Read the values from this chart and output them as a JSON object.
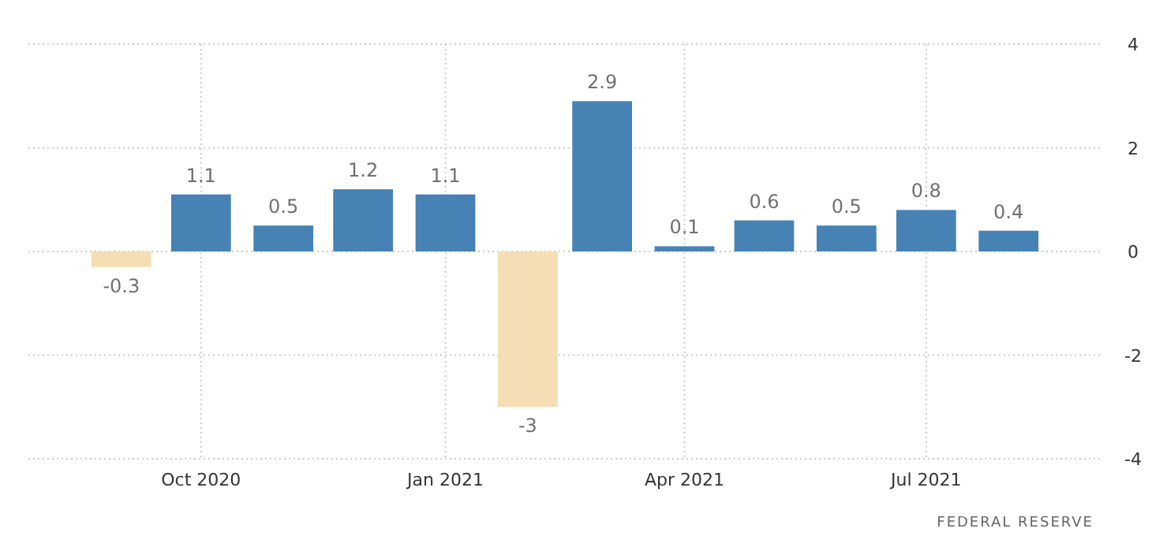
{
  "chart_data": {
    "type": "bar",
    "x": [
      "2020-09",
      "2020-10",
      "2020-11",
      "2020-12",
      "2021-01",
      "2021-02",
      "2021-03",
      "2021-04",
      "2021-05",
      "2021-06",
      "2021-07",
      "2021-08"
    ],
    "values": [
      -0.3,
      1.1,
      0.5,
      1.2,
      1.1,
      -3,
      2.9,
      0.1,
      0.6,
      0.5,
      0.8,
      0.4
    ],
    "colors": [
      "#f5deb3",
      "#4682b4",
      "#4682b4",
      "#4682b4",
      "#4682b4",
      "#f5deb3",
      "#4682b4",
      "#4682b4",
      "#4682b4",
      "#4682b4",
      "#4682b4",
      "#4682b4"
    ],
    "xlim": [
      "2020-07-28",
      "2021-09-05"
    ],
    "xticks": [
      {
        "value": "2020-10",
        "label": "Oct 2020"
      },
      {
        "value": "2021-01",
        "label": "Jan 2021"
      },
      {
        "value": "2021-04",
        "label": "Apr 2021"
      },
      {
        "value": "2021-07",
        "label": "Jul 2021"
      }
    ],
    "ylim": [
      -4,
      4
    ],
    "yticks": [
      -4,
      -2,
      0,
      2,
      4
    ],
    "grid": true,
    "data_labels": true,
    "annotations": [
      "FEDERAL RESERVE"
    ]
  }
}
